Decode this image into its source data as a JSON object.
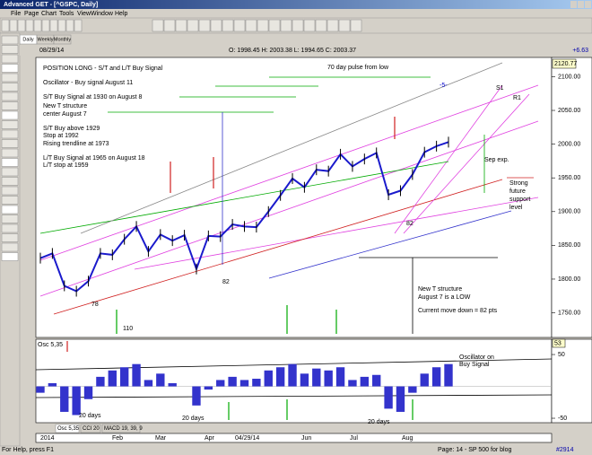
{
  "window": {
    "title": "Advanced GET - [^GSPC, Daily]",
    "menu": [
      "File",
      "Page",
      "Chart",
      "Tools",
      "View",
      "Window",
      "Help"
    ],
    "tabs": [
      "Daily",
      "Weekly",
      "Monthly"
    ],
    "info": {
      "date": "08/29/14",
      "ohlc": "O: 1998.45  H: 2003.38  L: 1994.65  C: 2003.37",
      "change": "+6.63"
    },
    "bottom_tabs": [
      "Osc 5,35",
      "CCI 20",
      "MACD 19, 39, 9"
    ],
    "status": {
      "help": "For Help, press F1",
      "page": "Page: 14 - SP 500 for blog",
      "bar": "#2914"
    }
  },
  "chart_data": [
    {
      "type": "line",
      "ylim": [
        1713.5,
        2128.5
      ],
      "yticks": [
        {
          "value": 2100,
          "label": "2100.00"
        },
        {
          "value": 2050,
          "label": "2050.00"
        },
        {
          "value": 2000,
          "label": "2000.00"
        },
        {
          "value": 1950,
          "label": "1950.00"
        },
        {
          "value": 1900,
          "label": "1900.00"
        },
        {
          "value": 1850,
          "label": "1850.00"
        },
        {
          "value": 1800,
          "label": "1800.00"
        },
        {
          "value": 1750,
          "label": "1750.00"
        }
      ],
      "top_price": "2120.77",
      "date_labels": [
        "2014",
        "Feb",
        "Mar",
        "Apr",
        "04/29/14",
        "Jun",
        "Jul",
        "Aug"
      ],
      "series": [
        {
          "color": "#1a1acc",
          "values": [
            1831,
            1838,
            1790,
            1782,
            1797,
            1838,
            1836,
            1859,
            1878,
            1841,
            1866,
            1857,
            1865,
            1815,
            1864,
            1863,
            1881,
            1878,
            1877,
            1900,
            1924,
            1949,
            1936,
            1962,
            1960,
            1985,
            1967,
            1978,
            1987,
            1925,
            1931,
            1955,
            1988,
            1997,
            2003
          ]
        }
      ],
      "annotations": [
        "POSITION LONG - S/T and L/T Buy Signal",
        "Oscillator - Buy signal August 11",
        "S/T Buy Signal at 1930 on August 8",
        "New T structure",
        "center August 7",
        "S/T Buy above 1929",
        "Stop at 1992",
        "Rising trendline at 1973",
        "L/T Buy Signal at 1965 on August 18",
        "L/T stop at 1959",
        "70 day pulse from low",
        "Sep exp.",
        "Strong",
        "future",
        "support",
        "level",
        "New T structure",
        "August 7 is a LOW",
        "Current move down = 82 pts",
        "S1",
        "R1",
        "-5-",
        "82",
        "82",
        "110",
        "78"
      ]
    },
    {
      "type": "bar",
      "title": "Osc 5,35",
      "ylim": [
        -57,
        74
      ],
      "yticks": [
        50,
        -50
      ],
      "current": 53,
      "color": "#3333cc",
      "values": [
        -10,
        5,
        -40,
        -45,
        -20,
        15,
        25,
        30,
        35,
        10,
        20,
        5,
        0,
        -30,
        -5,
        10,
        15,
        10,
        12,
        25,
        30,
        35,
        20,
        28,
        25,
        30,
        10,
        15,
        18,
        -35,
        -40,
        -10,
        20,
        30,
        35
      ],
      "annotations": [
        "Oscillator on",
        "Buy Signal",
        "20 days",
        "20 days",
        "20 days"
      ]
    }
  ]
}
